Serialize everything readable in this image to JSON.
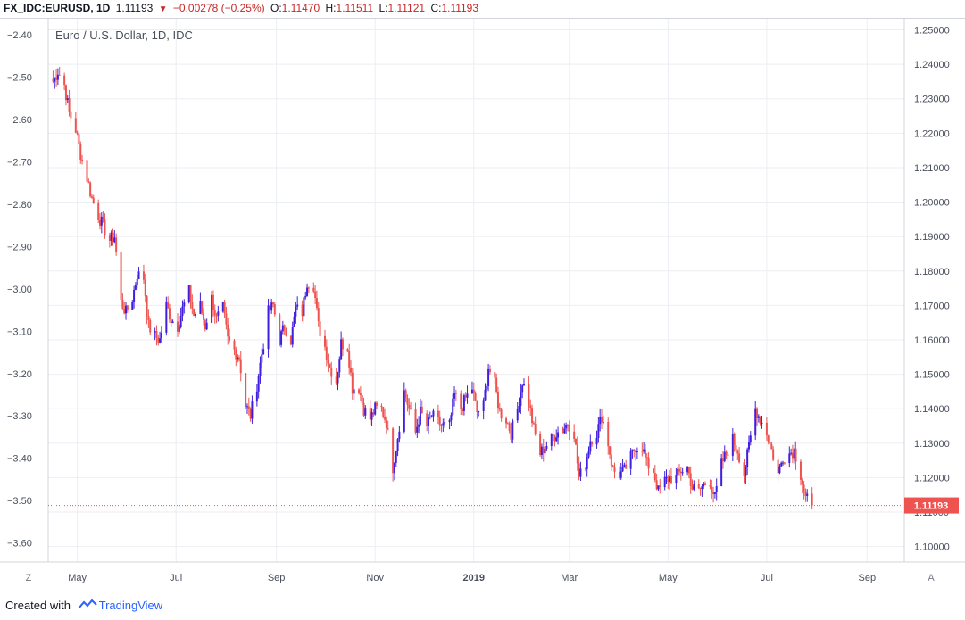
{
  "header": {
    "symbol": "FX_IDC:EURUSD, 1D",
    "last": "1.11193",
    "change": "−0.00278 (−0.25%)",
    "o_label": "O:",
    "o_value": "1.11470",
    "h_label": "H:",
    "h_value": "1.11511",
    "l_label": "L:",
    "l_value": "1.11121",
    "c_label": "C:",
    "c_value": "1.11193"
  },
  "pane_title": "Euro / U.S. Dollar, 1D, IDC",
  "price_label": "1.11193",
  "corner_left": "Z",
  "corner_right": "A",
  "footer": {
    "created_with": "Created with",
    "brand": "TradingView"
  },
  "colors": {
    "up": "#3f1ee0",
    "down": "#ef5350",
    "grid": "#ebeef3",
    "price_line": "#ef5350"
  },
  "chart_data": {
    "type": "candlestick",
    "title": "Euro / U.S. Dollar, 1D, IDC",
    "left_axis": {
      "ticks": [
        "−2.40",
        "−2.50",
        "−2.60",
        "−2.70",
        "−2.80",
        "−2.90",
        "−3.00",
        "−3.10",
        "−3.20",
        "−3.30",
        "−3.40",
        "−3.50",
        "−3.60"
      ],
      "range": [
        -3.645,
        -2.36
      ]
    },
    "right_axis": {
      "ticks": [
        "1.25000",
        "1.24000",
        "1.23000",
        "1.22000",
        "1.21000",
        "1.20000",
        "1.19000",
        "1.18000",
        "1.17000",
        "1.16000",
        "1.15000",
        "1.14000",
        "1.13000",
        "1.12000",
        "1.11000",
        "1.10000"
      ],
      "range": [
        1.0955,
        1.2535
      ]
    },
    "x_axis": {
      "ticks": [
        "May",
        "Jul",
        "Sep",
        "Nov",
        "2019",
        "Mar",
        "May",
        "Jul",
        "Sep"
      ],
      "range": [
        "2018-04-13",
        "2019-09-24"
      ]
    },
    "last_close": 1.11193,
    "series": [
      {
        "date": "2018-04-16",
        "close": 1.235
      },
      {
        "date": "2018-04-19",
        "close": 1.238
      },
      {
        "date": "2018-04-23",
        "close": 1.234
      },
      {
        "date": "2018-04-26",
        "close": 1.226
      },
      {
        "date": "2018-04-30",
        "close": 1.221
      },
      {
        "date": "2018-05-03",
        "close": 1.214
      },
      {
        "date": "2018-05-07",
        "close": 1.207
      },
      {
        "date": "2018-05-10",
        "close": 1.201
      },
      {
        "date": "2018-05-14",
        "close": 1.196
      },
      {
        "date": "2018-05-17",
        "close": 1.193
      },
      {
        "date": "2018-05-21",
        "close": 1.189
      },
      {
        "date": "2018-05-24",
        "close": 1.19
      },
      {
        "date": "2018-05-28",
        "close": 1.171
      },
      {
        "date": "2018-05-31",
        "close": 1.168
      },
      {
        "date": "2018-06-04",
        "close": 1.172
      },
      {
        "date": "2018-06-07",
        "close": 1.179
      },
      {
        "date": "2018-06-11",
        "close": 1.178
      },
      {
        "date": "2018-06-14",
        "close": 1.164
      },
      {
        "date": "2018-06-18",
        "close": 1.161
      },
      {
        "date": "2018-06-21",
        "close": 1.16
      },
      {
        "date": "2018-06-25",
        "close": 1.17
      },
      {
        "date": "2018-06-28",
        "close": 1.166
      },
      {
        "date": "2018-07-02",
        "close": 1.164
      },
      {
        "date": "2018-07-05",
        "close": 1.169
      },
      {
        "date": "2018-07-09",
        "close": 1.174
      },
      {
        "date": "2018-07-12",
        "close": 1.167
      },
      {
        "date": "2018-07-16",
        "close": 1.17
      },
      {
        "date": "2018-07-19",
        "close": 1.164
      },
      {
        "date": "2018-07-23",
        "close": 1.172
      },
      {
        "date": "2018-07-26",
        "close": 1.166
      },
      {
        "date": "2018-07-30",
        "close": 1.169
      },
      {
        "date": "2018-08-02",
        "close": 1.16
      },
      {
        "date": "2018-08-06",
        "close": 1.157
      },
      {
        "date": "2018-08-09",
        "close": 1.155
      },
      {
        "date": "2018-08-13",
        "close": 1.141
      },
      {
        "date": "2018-08-16",
        "close": 1.138
      },
      {
        "date": "2018-08-20",
        "close": 1.147
      },
      {
        "date": "2018-08-23",
        "close": 1.156
      },
      {
        "date": "2018-08-27",
        "close": 1.168
      },
      {
        "date": "2018-08-30",
        "close": 1.17
      },
      {
        "date": "2018-09-03",
        "close": 1.16
      },
      {
        "date": "2018-09-06",
        "close": 1.164
      },
      {
        "date": "2018-09-10",
        "close": 1.16
      },
      {
        "date": "2018-09-13",
        "close": 1.169
      },
      {
        "date": "2018-09-17",
        "close": 1.168
      },
      {
        "date": "2018-09-20",
        "close": 1.177
      },
      {
        "date": "2018-09-24",
        "close": 1.176
      },
      {
        "date": "2018-09-27",
        "close": 1.164
      },
      {
        "date": "2018-10-01",
        "close": 1.158
      },
      {
        "date": "2018-10-04",
        "close": 1.152
      },
      {
        "date": "2018-10-08",
        "close": 1.148
      },
      {
        "date": "2018-10-11",
        "close": 1.159
      },
      {
        "date": "2018-10-15",
        "close": 1.158
      },
      {
        "date": "2018-10-18",
        "close": 1.146
      },
      {
        "date": "2018-10-22",
        "close": 1.146
      },
      {
        "date": "2018-10-25",
        "close": 1.14
      },
      {
        "date": "2018-10-29",
        "close": 1.137
      },
      {
        "date": "2018-11-01",
        "close": 1.14
      },
      {
        "date": "2018-11-05",
        "close": 1.14
      },
      {
        "date": "2018-11-08",
        "close": 1.136
      },
      {
        "date": "2018-11-12",
        "close": 1.123
      },
      {
        "date": "2018-11-15",
        "close": 1.132
      },
      {
        "date": "2018-11-19",
        "close": 1.145
      },
      {
        "date": "2018-11-22",
        "close": 1.14
      },
      {
        "date": "2018-11-26",
        "close": 1.133
      },
      {
        "date": "2018-11-29",
        "close": 1.139
      },
      {
        "date": "2018-12-03",
        "close": 1.135
      },
      {
        "date": "2018-12-06",
        "close": 1.138
      },
      {
        "date": "2018-12-10",
        "close": 1.136
      },
      {
        "date": "2018-12-13",
        "close": 1.135
      },
      {
        "date": "2018-12-17",
        "close": 1.135
      },
      {
        "date": "2018-12-20",
        "close": 1.144
      },
      {
        "date": "2018-12-24",
        "close": 1.14
      },
      {
        "date": "2018-12-27",
        "close": 1.143
      },
      {
        "date": "2018-12-31",
        "close": 1.146
      },
      {
        "date": "2019-01-03",
        "close": 1.139
      },
      {
        "date": "2019-01-07",
        "close": 1.141
      },
      {
        "date": "2019-01-10",
        "close": 1.152
      },
      {
        "date": "2019-01-14",
        "close": 1.147
      },
      {
        "date": "2019-01-17",
        "close": 1.139
      },
      {
        "date": "2019-01-21",
        "close": 1.137
      },
      {
        "date": "2019-01-24",
        "close": 1.133
      },
      {
        "date": "2019-01-28",
        "close": 1.14
      },
      {
        "date": "2019-01-31",
        "close": 1.148
      },
      {
        "date": "2019-02-04",
        "close": 1.142
      },
      {
        "date": "2019-02-07",
        "close": 1.134
      },
      {
        "date": "2019-02-11",
        "close": 1.127
      },
      {
        "date": "2019-02-14",
        "close": 1.129
      },
      {
        "date": "2019-02-18",
        "close": 1.131
      },
      {
        "date": "2019-02-21",
        "close": 1.133
      },
      {
        "date": "2019-02-25",
        "close": 1.134
      },
      {
        "date": "2019-02-28",
        "close": 1.136
      },
      {
        "date": "2019-03-04",
        "close": 1.133
      },
      {
        "date": "2019-03-07",
        "close": 1.12
      },
      {
        "date": "2019-03-11",
        "close": 1.124
      },
      {
        "date": "2019-03-14",
        "close": 1.131
      },
      {
        "date": "2019-03-18",
        "close": 1.133
      },
      {
        "date": "2019-03-21",
        "close": 1.138
      },
      {
        "date": "2019-03-25",
        "close": 1.13
      },
      {
        "date": "2019-03-28",
        "close": 1.122
      },
      {
        "date": "2019-04-01",
        "close": 1.121
      },
      {
        "date": "2019-04-04",
        "close": 1.122
      },
      {
        "date": "2019-04-08",
        "close": 1.126
      },
      {
        "date": "2019-04-11",
        "close": 1.129
      },
      {
        "date": "2019-04-15",
        "close": 1.129
      },
      {
        "date": "2019-04-18",
        "close": 1.124
      },
      {
        "date": "2019-04-22",
        "close": 1.122
      },
      {
        "date": "2019-04-25",
        "close": 1.116
      },
      {
        "date": "2019-04-29",
        "close": 1.119
      },
      {
        "date": "2019-05-02",
        "close": 1.12
      },
      {
        "date": "2019-05-06",
        "close": 1.12
      },
      {
        "date": "2019-05-09",
        "close": 1.122
      },
      {
        "date": "2019-05-13",
        "close": 1.123
      },
      {
        "date": "2019-05-16",
        "close": 1.117
      },
      {
        "date": "2019-05-20",
        "close": 1.116
      },
      {
        "date": "2019-05-23",
        "close": 1.118
      },
      {
        "date": "2019-05-27",
        "close": 1.119
      },
      {
        "date": "2019-05-30",
        "close": 1.114
      },
      {
        "date": "2019-06-03",
        "close": 1.124
      },
      {
        "date": "2019-06-06",
        "close": 1.127
      },
      {
        "date": "2019-06-10",
        "close": 1.131
      },
      {
        "date": "2019-06-13",
        "close": 1.128
      },
      {
        "date": "2019-06-17",
        "close": 1.121
      },
      {
        "date": "2019-06-20",
        "close": 1.129
      },
      {
        "date": "2019-06-24",
        "close": 1.14
      },
      {
        "date": "2019-06-27",
        "close": 1.137
      },
      {
        "date": "2019-07-01",
        "close": 1.133
      },
      {
        "date": "2019-07-04",
        "close": 1.128
      },
      {
        "date": "2019-07-08",
        "close": 1.121
      },
      {
        "date": "2019-07-11",
        "close": 1.126
      },
      {
        "date": "2019-07-15",
        "close": 1.127
      },
      {
        "date": "2019-07-18",
        "close": 1.128
      },
      {
        "date": "2019-07-22",
        "close": 1.121
      },
      {
        "date": "2019-07-25",
        "close": 1.114
      },
      {
        "date": "2019-07-29",
        "close": 1.11193
      }
    ]
  }
}
